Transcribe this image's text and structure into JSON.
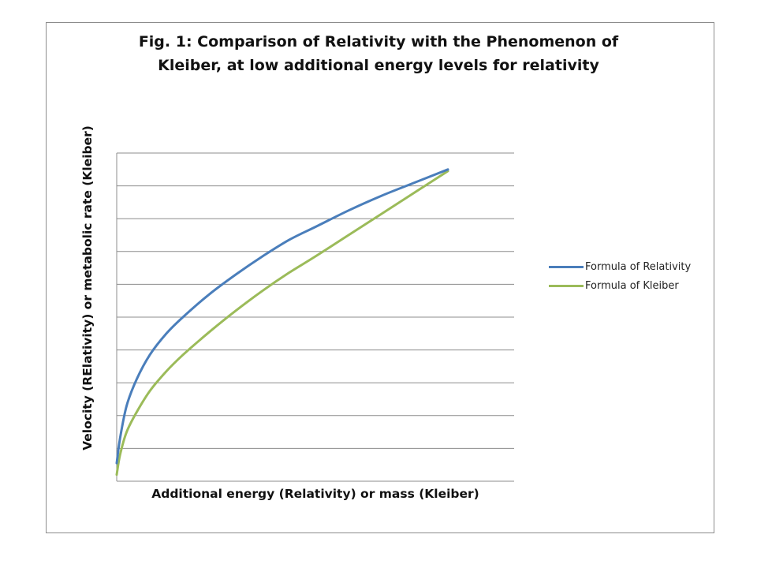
{
  "chart_data": {
    "type": "line",
    "title": "Fig. 1: Comparison of Relativity with the Phenomenon of Kleiber, at low additional energy levels for relativity",
    "title_lines": [
      "Fig. 1: Comparison of Relativity with the Phenomenon of",
      "Kleiber, at low additional energy levels for relativity"
    ],
    "xlabel": "Additional  energy (Relativity) or  mass (Kleiber)",
    "ylabel": "Velocity (RElativity) or metabolic rate (Kleiber)",
    "xlim": [
      0,
      1.2
    ],
    "ylim": [
      0,
      10
    ],
    "grid": true,
    "axis_tick_labels_shown": false,
    "legend_position": "right",
    "series": [
      {
        "name": "Formula of Relativity",
        "color": "#4a7ebb",
        "x": [
          0.0,
          0.01,
          0.03,
          0.06,
          0.1,
          0.15,
          0.2,
          0.28,
          0.36,
          0.44,
          0.52,
          0.6,
          0.7,
          0.8,
          0.9,
          1.0
        ],
        "y": [
          0.55,
          1.3,
          2.3,
          3.1,
          3.85,
          4.5,
          5.0,
          5.7,
          6.3,
          6.85,
          7.35,
          7.75,
          8.25,
          8.7,
          9.1,
          9.5
        ]
      },
      {
        "name": "Formula of Kleiber",
        "color": "#9bbb59",
        "x": [
          0.0,
          0.01,
          0.03,
          0.06,
          0.1,
          0.15,
          0.2,
          0.28,
          0.36,
          0.44,
          0.52,
          0.6,
          0.7,
          0.8,
          0.9,
          1.0
        ],
        "y": [
          0.2,
          0.8,
          1.5,
          2.1,
          2.75,
          3.35,
          3.85,
          4.55,
          5.2,
          5.8,
          6.35,
          6.85,
          7.5,
          8.15,
          8.8,
          9.45
        ]
      }
    ]
  }
}
